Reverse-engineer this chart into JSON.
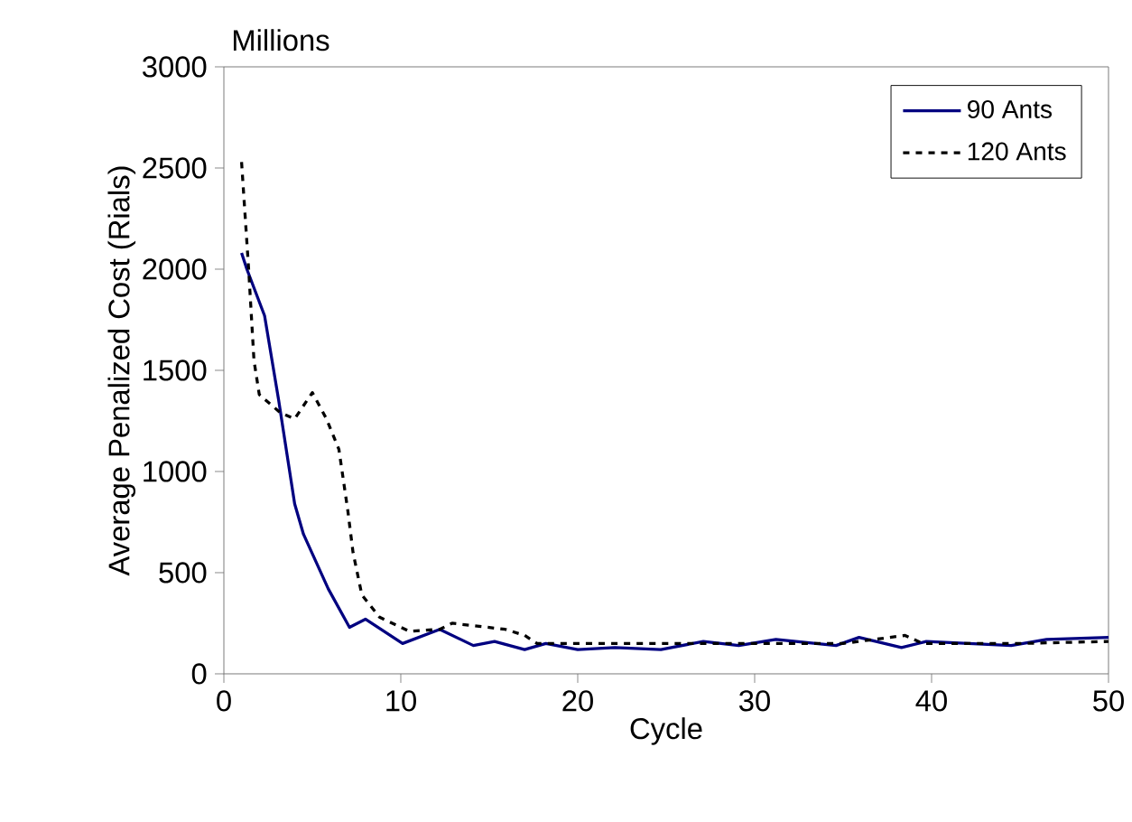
{
  "chart_data": {
    "type": "line",
    "title": "Millions",
    "xlabel": "Cycle",
    "ylabel": "Average Penalized Cost (Rials)",
    "xlim": [
      0,
      50
    ],
    "xticks": [
      0,
      10,
      20,
      30,
      40,
      50
    ],
    "ylim": [
      0,
      3000
    ],
    "yticks": [
      0,
      500,
      1000,
      1500,
      2000,
      2500,
      3000
    ],
    "legend": "top right",
    "grid": false,
    "marker": "none",
    "series": [
      {
        "name": "90 Ants",
        "color": "#000080",
        "line_style": "solid",
        "x": [
          1,
          1.3,
          2.3,
          3.1,
          4,
          4.5,
          5.9,
          7.1,
          8,
          10.1,
          12.2,
          14.1,
          15.3,
          17,
          18.2,
          20,
          22.1,
          24.7,
          27.1,
          29.1,
          31.2,
          34.6,
          35.9,
          38.3,
          39.7,
          44.5,
          46.5,
          50
        ],
        "values": [
          2080,
          2000,
          1770,
          1350,
          840,
          690,
          420,
          230,
          270,
          150,
          220,
          140,
          160,
          120,
          150,
          120,
          130,
          120,
          160,
          140,
          170,
          140,
          180,
          130,
          160,
          140,
          170,
          180
        ]
      },
      {
        "name": "120 Ants",
        "color": "#000000",
        "line_style": "dashed",
        "x": [
          1,
          1.4,
          1.7,
          2,
          3.2,
          4,
          5,
          5.8,
          6.5,
          7,
          7.3,
          7.8,
          8.8,
          10.5,
          12.2,
          12.9,
          15.9,
          17,
          17.7,
          22.1,
          25,
          30,
          35,
          38.5,
          39.5,
          45,
          50
        ],
        "values": [
          2530,
          2000,
          1550,
          1380,
          1290,
          1260,
          1390,
          1260,
          1110,
          810,
          600,
          390,
          280,
          210,
          220,
          250,
          220,
          190,
          150,
          150,
          150,
          150,
          150,
          190,
          150,
          150,
          160
        ]
      }
    ]
  }
}
